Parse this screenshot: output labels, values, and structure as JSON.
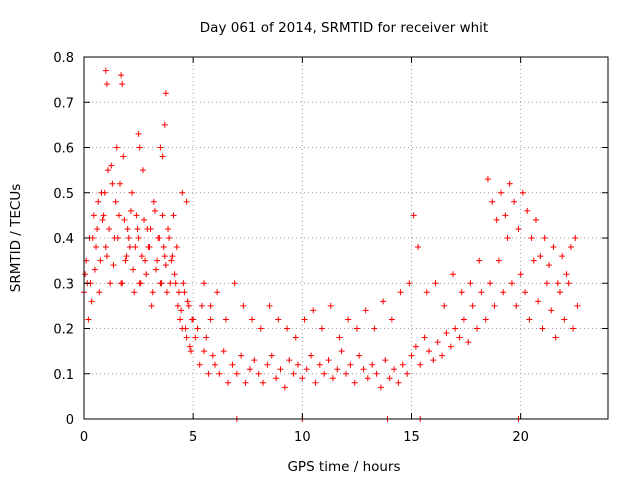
{
  "chart_data": {
    "type": "scatter",
    "title": "Day 061 of 2014, SRMTID for receiver whit",
    "xlabel": "GPS time / hours",
    "ylabel": "SRMTID / TECUs",
    "xlim": [
      0,
      24
    ],
    "ylim": [
      0,
      0.8
    ],
    "x_ticks": [
      0,
      5,
      10,
      15,
      20
    ],
    "x_tick_labels": [
      "0",
      "5",
      "10",
      "15",
      "20"
    ],
    "y_ticks": [
      0,
      0.1,
      0.2,
      0.3,
      0.4,
      0.5,
      0.6,
      0.7,
      0.8
    ],
    "y_tick_labels": [
      "0",
      "0.1",
      "0.2",
      "0.3",
      "0.4",
      "0.5",
      "0.6",
      "0.7",
      "0.8"
    ],
    "grid": true,
    "marker": "+",
    "marker_color": "#ff0000",
    "series": [
      {
        "name": "SRMTID",
        "x": [
          0.0,
          0.1,
          0.2,
          0.3,
          0.4,
          0.5,
          0.6,
          0.7,
          0.8,
          0.9,
          1.0,
          1.1,
          1.2,
          1.3,
          1.4,
          1.5,
          1.6,
          1.7,
          1.8,
          1.9,
          2.0,
          2.1,
          2.2,
          2.3,
          2.4,
          2.5,
          2.6,
          2.7,
          2.8,
          2.9,
          3.0,
          3.1,
          3.2,
          3.3,
          3.4,
          3.5,
          3.6,
          3.7,
          3.8,
          3.9,
          4.0,
          4.1,
          4.2,
          4.3,
          4.4,
          4.5,
          4.6,
          4.7,
          4.8,
          4.9,
          5.0,
          5.1,
          5.2,
          5.3,
          5.4,
          5.5,
          5.6,
          5.7,
          5.8,
          5.9,
          6.0,
          6.2,
          6.4,
          6.6,
          6.8,
          7.0,
          7.2,
          7.4,
          7.6,
          7.8,
          8.0,
          8.2,
          8.4,
          8.6,
          8.8,
          9.0,
          9.2,
          9.4,
          9.6,
          9.8,
          10.0,
          10.2,
          10.4,
          10.6,
          10.8,
          11.0,
          11.2,
          11.4,
          11.6,
          11.8,
          12.0,
          12.2,
          12.4,
          12.6,
          12.8,
          13.0,
          13.2,
          13.4,
          13.6,
          13.8,
          14.0,
          14.2,
          14.4,
          14.6,
          14.8,
          15.0,
          15.2,
          15.4,
          15.6,
          15.8,
          16.0,
          16.2,
          16.4,
          16.6,
          16.8,
          17.0,
          17.2,
          17.4,
          17.6,
          17.8,
          18.0,
          18.2,
          18.4,
          18.6,
          18.8,
          19.0,
          19.2,
          19.4,
          19.6,
          19.8,
          20.0,
          20.2,
          20.4,
          20.6,
          20.8,
          21.0,
          21.2,
          21.4,
          21.6,
          21.8,
          22.0,
          22.2,
          22.4,
          22.6,
          0.05,
          0.15,
          0.25,
          0.35,
          0.45,
          0.55,
          0.65,
          0.75,
          0.85,
          0.95,
          1.05,
          1.15,
          1.25,
          1.35,
          1.45,
          1.55,
          1.65,
          1.75,
          1.85,
          1.95,
          2.05,
          2.15,
          2.25,
          2.35,
          2.45,
          2.55,
          2.65,
          2.75,
          2.85,
          2.95,
          3.05,
          3.15,
          3.25,
          3.35,
          3.45,
          3.55,
          3.65,
          3.75,
          3.85,
          3.95,
          4.05,
          4.15,
          4.25,
          4.35,
          4.45,
          4.55,
          4.65,
          4.75,
          4.85,
          4.95,
          1.0,
          1.05,
          1.7,
          1.75,
          2.5,
          2.55,
          3.5,
          3.6,
          3.7,
          3.75,
          4.5,
          4.7,
          5.5,
          5.8,
          6.1,
          6.5,
          6.9,
          7.3,
          7.7,
          8.1,
          8.5,
          8.9,
          9.3,
          9.7,
          10.1,
          10.5,
          10.9,
          11.3,
          11.7,
          12.1,
          12.5,
          12.9,
          13.3,
          13.7,
          14.1,
          14.5,
          14.9,
          15.1,
          15.3,
          15.7,
          16.1,
          16.5,
          16.9,
          17.3,
          17.7,
          18.1,
          18.5,
          18.7,
          18.9,
          19.1,
          19.3,
          19.5,
          19.7,
          19.9,
          20.1,
          20.3,
          20.5,
          20.7,
          20.9,
          21.1,
          21.3,
          21.5,
          21.7,
          21.9,
          22.1,
          22.3,
          22.5,
          7.0,
          10.0,
          13.9,
          15.4,
          19.9
        ],
        "y": [
          0.28,
          0.35,
          0.22,
          0.3,
          0.4,
          0.33,
          0.42,
          0.28,
          0.5,
          0.45,
          0.38,
          0.55,
          0.3,
          0.52,
          0.4,
          0.6,
          0.45,
          0.3,
          0.58,
          0.35,
          0.42,
          0.38,
          0.5,
          0.28,
          0.45,
          0.4,
          0.3,
          0.55,
          0.35,
          0.42,
          0.38,
          0.25,
          0.48,
          0.33,
          0.4,
          0.3,
          0.45,
          0.36,
          0.28,
          0.4,
          0.35,
          0.45,
          0.3,
          0.25,
          0.22,
          0.2,
          0.28,
          0.18,
          0.25,
          0.15,
          0.22,
          0.18,
          0.2,
          0.12,
          0.25,
          0.15,
          0.18,
          0.1,
          0.22,
          0.14,
          0.12,
          0.1,
          0.15,
          0.08,
          0.12,
          0.1,
          0.14,
          0.08,
          0.11,
          0.13,
          0.1,
          0.08,
          0.12,
          0.14,
          0.09,
          0.11,
          0.07,
          0.13,
          0.1,
          0.12,
          0.09,
          0.11,
          0.14,
          0.08,
          0.12,
          0.1,
          0.13,
          0.09,
          0.11,
          0.15,
          0.1,
          0.12,
          0.08,
          0.14,
          0.11,
          0.09,
          0.12,
          0.1,
          0.07,
          0.13,
          0.09,
          0.11,
          0.08,
          0.12,
          0.1,
          0.14,
          0.16,
          0.12,
          0.18,
          0.15,
          0.13,
          0.17,
          0.14,
          0.19,
          0.16,
          0.2,
          0.18,
          0.22,
          0.17,
          0.25,
          0.2,
          0.28,
          0.22,
          0.3,
          0.25,
          0.35,
          0.28,
          0.4,
          0.3,
          0.25,
          0.32,
          0.28,
          0.22,
          0.35,
          0.26,
          0.2,
          0.3,
          0.24,
          0.18,
          0.28,
          0.22,
          0.3,
          0.2,
          0.25,
          0.32,
          0.3,
          0.4,
          0.26,
          0.45,
          0.38,
          0.48,
          0.35,
          0.44,
          0.5,
          0.36,
          0.42,
          0.56,
          0.34,
          0.48,
          0.4,
          0.52,
          0.3,
          0.44,
          0.36,
          0.4,
          0.46,
          0.33,
          0.38,
          0.42,
          0.3,
          0.36,
          0.44,
          0.32,
          0.38,
          0.42,
          0.28,
          0.46,
          0.35,
          0.4,
          0.3,
          0.38,
          0.34,
          0.42,
          0.3,
          0.36,
          0.32,
          0.38,
          0.28,
          0.24,
          0.3,
          0.2,
          0.26,
          0.16,
          0.22,
          0.77,
          0.74,
          0.76,
          0.74,
          0.63,
          0.6,
          0.6,
          0.58,
          0.65,
          0.72,
          0.5,
          0.48,
          0.3,
          0.25,
          0.28,
          0.22,
          0.3,
          0.25,
          0.22,
          0.2,
          0.25,
          0.22,
          0.2,
          0.18,
          0.22,
          0.24,
          0.2,
          0.25,
          0.18,
          0.22,
          0.2,
          0.24,
          0.2,
          0.26,
          0.22,
          0.28,
          0.3,
          0.45,
          0.38,
          0.28,
          0.3,
          0.25,
          0.32,
          0.28,
          0.3,
          0.35,
          0.53,
          0.48,
          0.44,
          0.5,
          0.45,
          0.52,
          0.48,
          0.42,
          0.5,
          0.46,
          0.4,
          0.44,
          0.36,
          0.4,
          0.34,
          0.38,
          0.3,
          0.36,
          0.32,
          0.38,
          0.4,
          0.0,
          0.0,
          0.0,
          0.0,
          0.0
        ]
      }
    ]
  }
}
